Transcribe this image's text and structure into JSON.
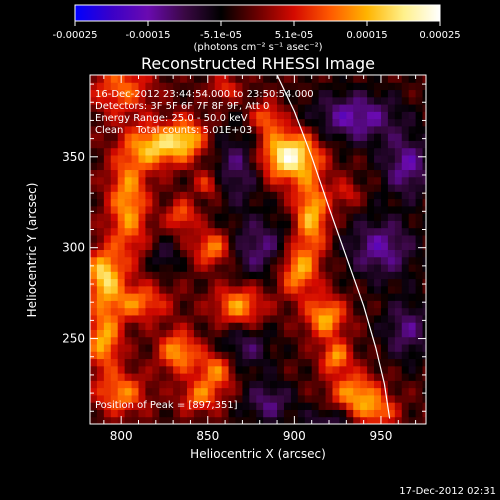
{
  "colorbar": {
    "tick_labels": [
      "-0.00025",
      "-0.00015",
      "-5.1e-05",
      "5.1e-05",
      "0.00015",
      "0.00025"
    ],
    "units": "(photons cm⁻² s⁻¹ asec⁻²)",
    "range": [
      -0.00025,
      0.00025
    ],
    "stops": [
      "#0000ff",
      "#3a00c8",
      "#6a0ab0",
      "#3a0844",
      "#000000",
      "#6a0000",
      "#d40a00",
      "#ff5a00",
      "#ffb400",
      "#fff08a",
      "#ffffff"
    ]
  },
  "chart_data": {
    "type": "heatmap",
    "title": "Reconstructed RHESSI Image",
    "xlabel": "Heliocentric X (arcsec)",
    "ylabel": "Heliocentric Y (arcsec)",
    "xlim": [
      782,
      976
    ],
    "ylim": [
      203,
      395
    ],
    "x_ticks": [
      800,
      850,
      900,
      950
    ],
    "y_ticks": [
      250,
      300,
      350
    ],
    "x_tick_labels": [
      "800",
      "850",
      "900",
      "950"
    ],
    "y_tick_labels": [
      "250",
      "300",
      "350"
    ],
    "info_lines": [
      "16-Dec-2012 23:44:54.000 to 23:50:54.000",
      "Detectors: 3F 5F 6F 7F 8F 9F, Att 0",
      "Energy Range: 25.0 - 50.0 keV",
      "Clean    Total counts: 5.01E+03"
    ],
    "peak_label": "Position of Peak = [897,351]",
    "peak": [
      897,
      351
    ],
    "limb_curve": [
      [
        890,
        395
      ],
      [
        900,
        375
      ],
      [
        910,
        350
      ],
      [
        920,
        322
      ],
      [
        930,
        295
      ],
      [
        940,
        268
      ],
      [
        947,
        245
      ],
      [
        952,
        225
      ],
      [
        955,
        206
      ]
    ],
    "sources": [
      {
        "x": 800,
        "y": 388,
        "sx": 12,
        "sy": 10,
        "a": 0.00012
      },
      {
        "x": 820,
        "y": 356,
        "sx": 10,
        "sy": 8,
        "a": 0.00018
      },
      {
        "x": 804,
        "y": 325,
        "sx": 8,
        "sy": 22,
        "a": 0.00016
      },
      {
        "x": 838,
        "y": 360,
        "sx": 8,
        "sy": 8,
        "a": 0.00017
      },
      {
        "x": 835,
        "y": 318,
        "sx": 6,
        "sy": 6,
        "a": 0.00012
      },
      {
        "x": 853,
        "y": 300,
        "sx": 8,
        "sy": 7,
        "a": 0.00015
      },
      {
        "x": 790,
        "y": 285,
        "sx": 7,
        "sy": 10,
        "a": 0.0002
      },
      {
        "x": 790,
        "y": 250,
        "sx": 7,
        "sy": 12,
        "a": 0.00017
      },
      {
        "x": 810,
        "y": 270,
        "sx": 12,
        "sy": 7,
        "a": 0.00013
      },
      {
        "x": 868,
        "y": 268,
        "sx": 10,
        "sy": 8,
        "a": 0.00016
      },
      {
        "x": 800,
        "y": 220,
        "sx": 10,
        "sy": 8,
        "a": 0.00014
      },
      {
        "x": 833,
        "y": 243,
        "sx": 8,
        "sy": 8,
        "a": 0.00016
      },
      {
        "x": 845,
        "y": 218,
        "sx": 8,
        "sy": 6,
        "a": 0.00012
      },
      {
        "x": 855,
        "y": 233,
        "sx": 8,
        "sy": 8,
        "a": 0.00015
      },
      {
        "x": 897,
        "y": 351,
        "sx": 12,
        "sy": 10,
        "a": 0.00025
      },
      {
        "x": 884,
        "y": 372,
        "sx": 6,
        "sy": 6,
        "a": 0.00012
      },
      {
        "x": 910,
        "y": 318,
        "sx": 7,
        "sy": 14,
        "a": 0.00018
      },
      {
        "x": 902,
        "y": 288,
        "sx": 8,
        "sy": 10,
        "a": 0.00017
      },
      {
        "x": 918,
        "y": 262,
        "sx": 8,
        "sy": 8,
        "a": 0.00017
      },
      {
        "x": 924,
        "y": 240,
        "sx": 6,
        "sy": 6,
        "a": 0.00015
      },
      {
        "x": 935,
        "y": 220,
        "sx": 10,
        "sy": 8,
        "a": 0.00016
      },
      {
        "x": 948,
        "y": 210,
        "sx": 8,
        "sy": 6,
        "a": 0.00012
      },
      {
        "x": 860,
        "y": 388,
        "sx": 6,
        "sy": 5,
        "a": 9e-05
      },
      {
        "x": 850,
        "y": 335,
        "sx": 5,
        "sy": 5,
        "a": 0.0001
      },
      {
        "x": 930,
        "y": 330,
        "sx": 5,
        "sy": 5,
        "a": 8e-05
      },
      {
        "x": 868,
        "y": 345,
        "sx": 10,
        "sy": 14,
        "a": -0.0001
      },
      {
        "x": 935,
        "y": 372,
        "sx": 18,
        "sy": 10,
        "a": -0.00013
      },
      {
        "x": 965,
        "y": 345,
        "sx": 10,
        "sy": 12,
        "a": -0.00012
      },
      {
        "x": 880,
        "y": 300,
        "sx": 14,
        "sy": 12,
        "a": -0.0001
      },
      {
        "x": 950,
        "y": 300,
        "sx": 14,
        "sy": 12,
        "a": -0.00012
      },
      {
        "x": 870,
        "y": 245,
        "sx": 12,
        "sy": 10,
        "a": -9e-05
      },
      {
        "x": 885,
        "y": 215,
        "sx": 10,
        "sy": 8,
        "a": -0.0001
      },
      {
        "x": 920,
        "y": 205,
        "sx": 10,
        "sy": 6,
        "a": -8e-05
      },
      {
        "x": 965,
        "y": 255,
        "sx": 10,
        "sy": 12,
        "a": -0.0001
      },
      {
        "x": 825,
        "y": 295,
        "sx": 6,
        "sy": 6,
        "a": -7e-05
      }
    ]
  },
  "timestamp": "17-Dec-2012 02:31"
}
